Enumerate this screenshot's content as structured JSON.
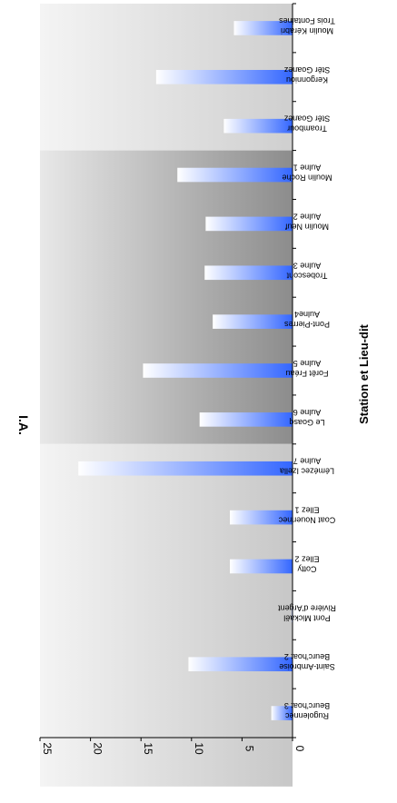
{
  "chart_data": {
    "type": "bar",
    "orientation": "rotated-90-clockwise",
    "title": "",
    "xlabel": "Station et Lieu-dit",
    "ylabel": "I.A.",
    "ylim": [
      0,
      25
    ],
    "yticks": [
      0,
      5,
      10,
      15,
      20,
      25
    ],
    "grid": false,
    "legend": "none",
    "bar_gradient": [
      "#ffffff",
      "#3366ff"
    ],
    "background_bands": [
      {
        "from": 0,
        "to": 3,
        "colors": [
          "#cfcfcf",
          "#f4f4f4"
        ]
      },
      {
        "from": 3,
        "to": 9,
        "colors": [
          "#8c8c8c",
          "#e8e8e8"
        ]
      },
      {
        "from": 9,
        "to": 16,
        "colors": [
          "#c7c7c7",
          "#f4f4f4"
        ]
      }
    ],
    "categories": [
      [
        "Moulin Kérabri",
        "Trois Fontaines"
      ],
      [
        "Kergonniou",
        "Stêr Goanez"
      ],
      [
        "Troambour",
        "Stêr Goanez"
      ],
      [
        "Moulin Roche",
        "Aulne 1"
      ],
      [
        "Moulin Neuf",
        "Aulne 2"
      ],
      [
        "Trobescont",
        "Aulne 3"
      ],
      [
        "Pont-Pierres",
        "Aulne4"
      ],
      [
        "Forêt Fréau",
        "Aulne 5"
      ],
      [
        "Le Goasq",
        "Aulne 6"
      ],
      [
        "Lémézec Izella",
        "Aulne 7"
      ],
      [
        "Coat Nouennec",
        "Ellez 1"
      ],
      [
        "Cotty",
        "Ellez 2"
      ],
      [
        "Pont Mickaël",
        "Rivière d'Argent"
      ],
      [
        "Saint-Ambroise",
        "Beurc'hoat 2"
      ],
      [
        "Rugolennec",
        "Beurc'hoat 3"
      ]
    ],
    "values": [
      5.8,
      13.5,
      6.8,
      11.4,
      8.6,
      8.7,
      7.9,
      14.8,
      9.2,
      21.2,
      6.2,
      6.2,
      0.1,
      10.3,
      2.1
    ]
  }
}
